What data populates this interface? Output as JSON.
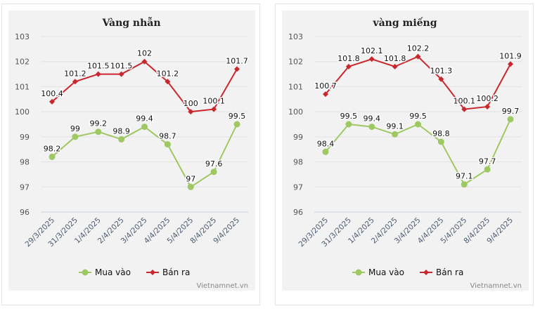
{
  "chart_data": [
    {
      "type": "line",
      "title": "Vàng nhẫn",
      "categories": [
        "29/3/2025",
        "31/3/2025",
        "1/4/2025",
        "2/4/2025",
        "3/4/2025",
        "4/4/2025",
        "5/4/2025",
        "8/4/2025",
        "9/4/2025"
      ],
      "ylim": [
        96,
        103
      ],
      "yticks": [
        96,
        97,
        98,
        99,
        100,
        101,
        102,
        103
      ],
      "grid": true,
      "legend_position": "bottom",
      "series": [
        {
          "name": "Mua vào",
          "color": "#9dc862",
          "marker": "circle",
          "values": [
            98.2,
            99,
            99.2,
            98.9,
            99.4,
            98.7,
            97,
            97.6,
            99.5
          ]
        },
        {
          "name": "Bán ra",
          "color": "#c9272d",
          "marker": "diamond",
          "values": [
            100.4,
            101.2,
            101.5,
            101.5,
            102,
            101.2,
            100,
            100.1,
            101.7
          ]
        }
      ],
      "watermark": "Vietnamnet.vn"
    },
    {
      "type": "line",
      "title": "vàng miếng",
      "categories": [
        "29/3/2025",
        "31/3/2025",
        "1/4/2025",
        "2/4/2025",
        "3/4/2025",
        "4/4/2025",
        "5/4/2025",
        "8/4/2025",
        "9/4/2025"
      ],
      "ylim": [
        96,
        103
      ],
      "yticks": [
        96,
        97,
        98,
        99,
        100,
        101,
        102,
        103
      ],
      "grid": true,
      "legend_position": "bottom",
      "series": [
        {
          "name": "Mua vào",
          "color": "#9dc862",
          "marker": "circle",
          "values": [
            98.4,
            99.5,
            99.4,
            99.1,
            99.5,
            98.8,
            97.1,
            97.7,
            99.7
          ]
        },
        {
          "name": "Bán ra",
          "color": "#c9272d",
          "marker": "diamond",
          "values": [
            100.7,
            101.8,
            102.1,
            101.8,
            102.2,
            101.3,
            100.1,
            100.2,
            101.9
          ]
        }
      ],
      "watermark": "Vietnamnet.vn"
    }
  ]
}
